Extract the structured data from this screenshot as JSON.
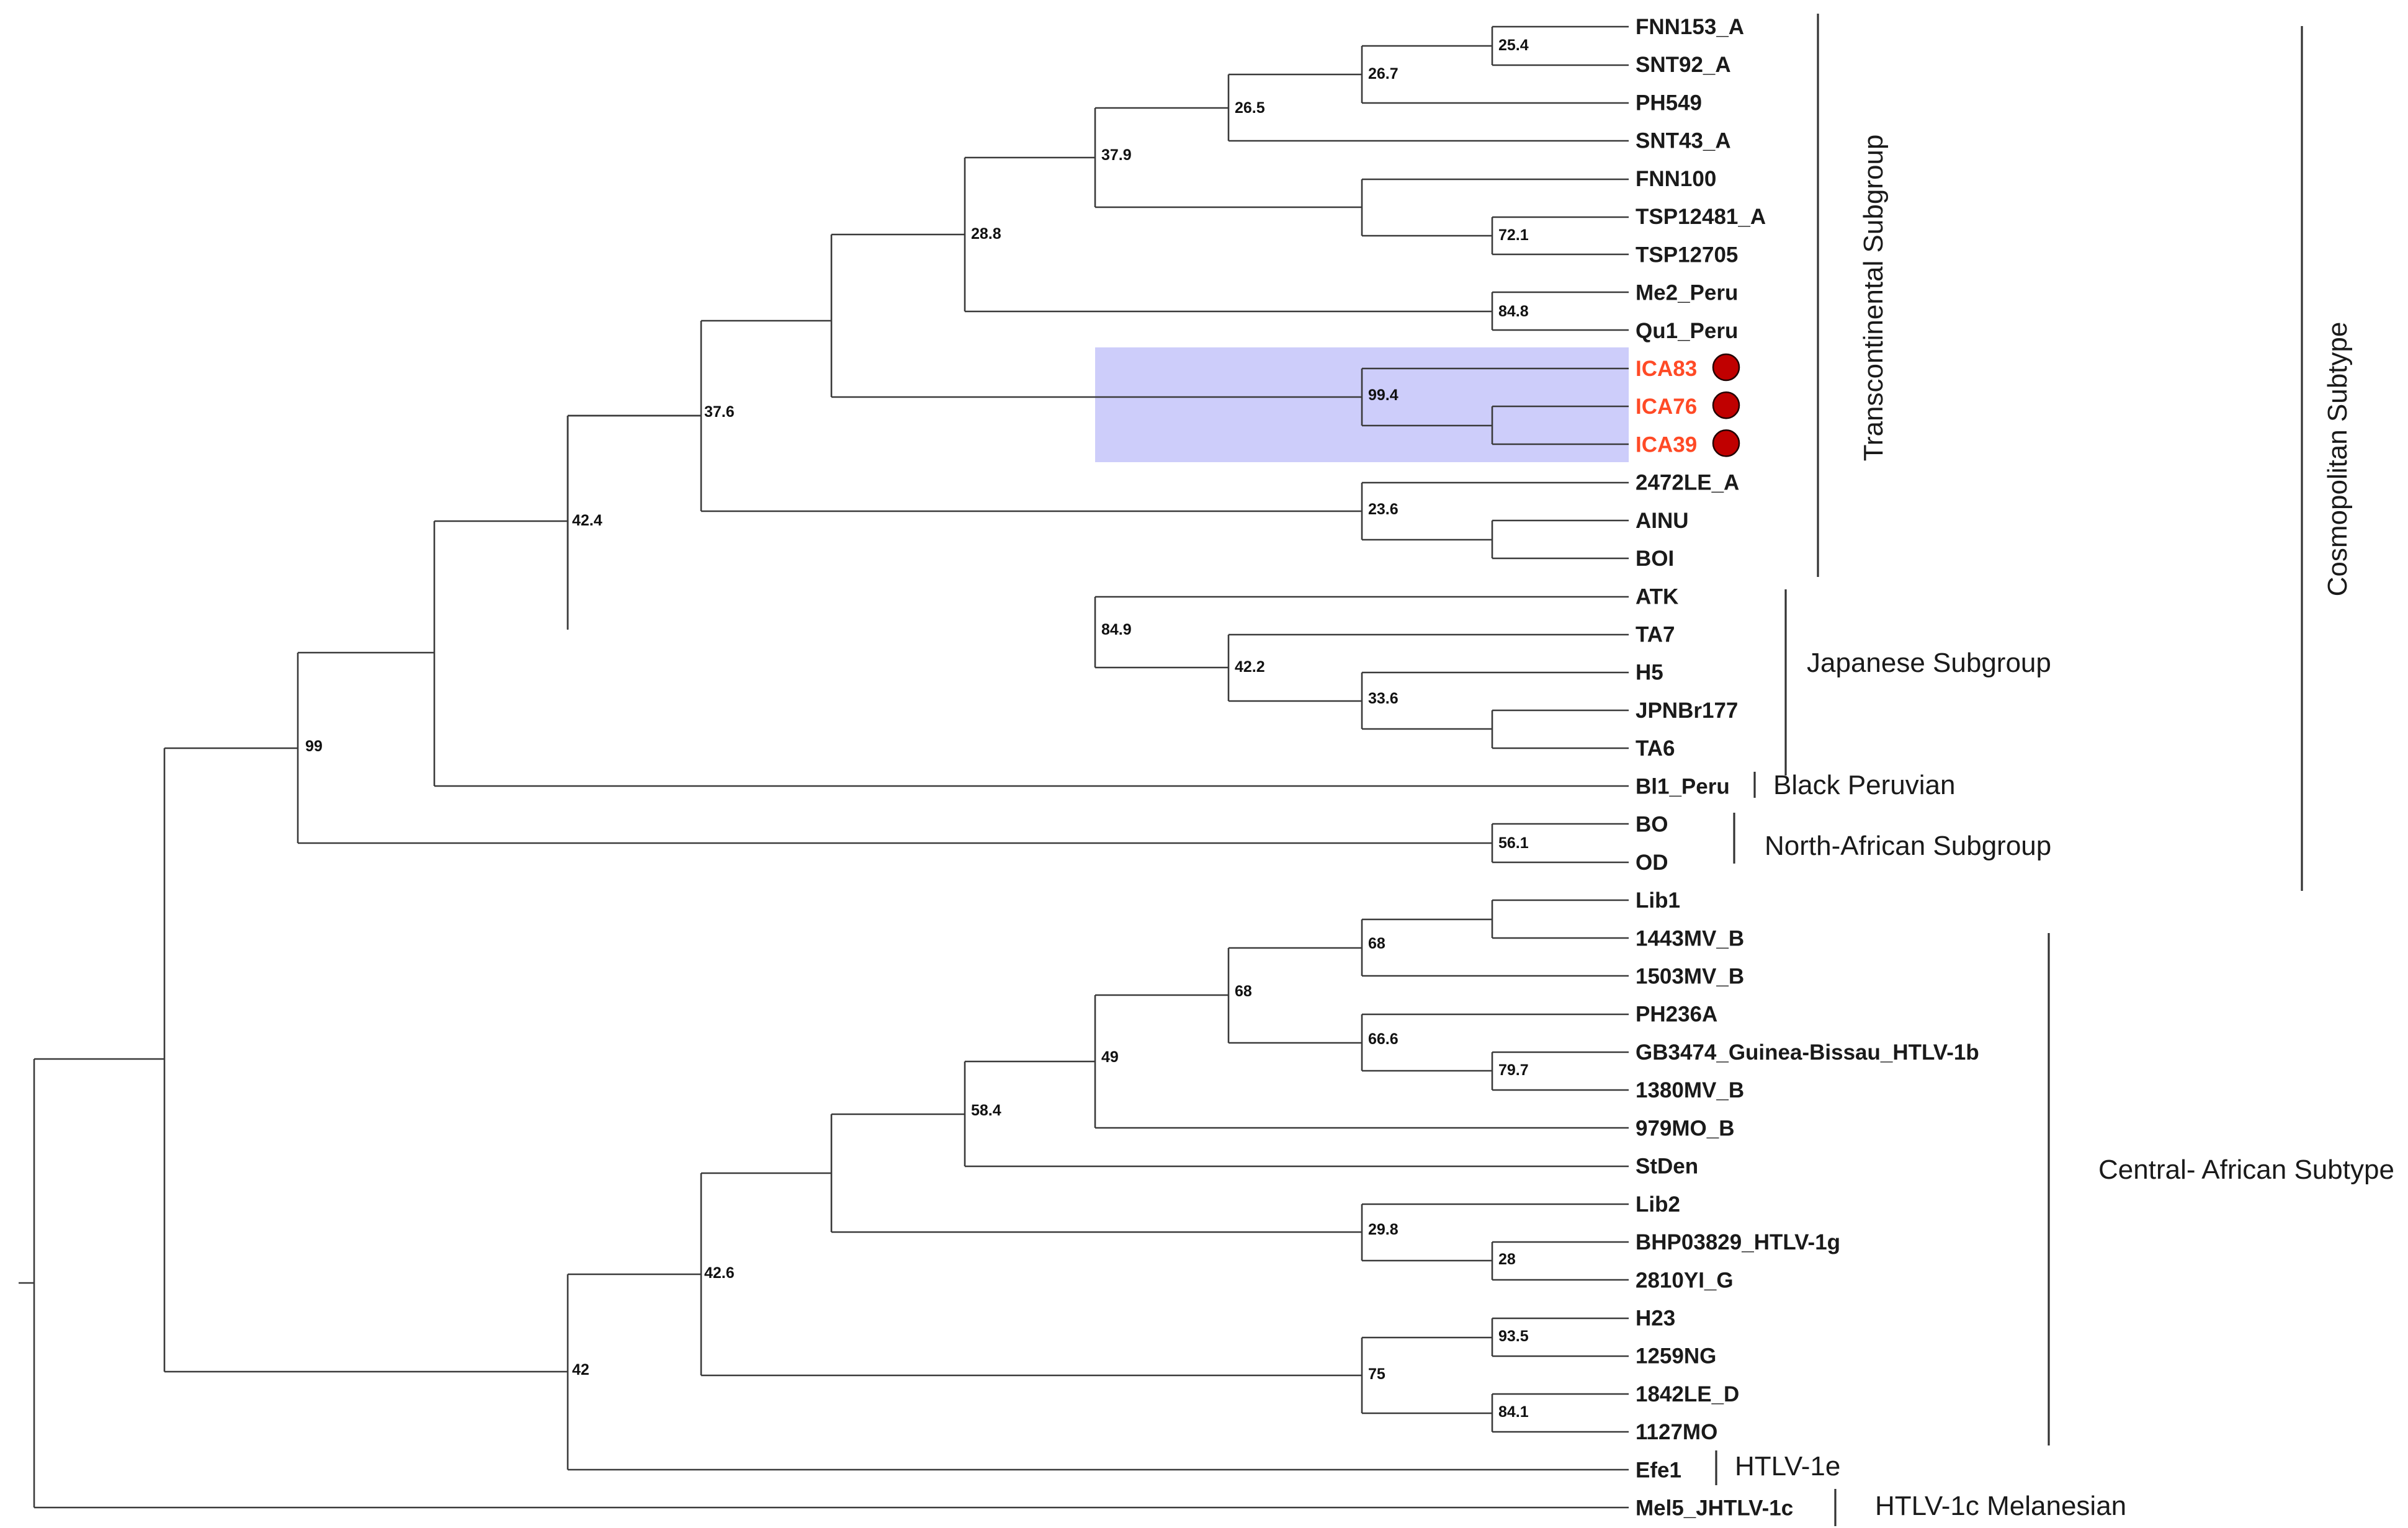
{
  "colors": {
    "branch": "#3a3a3a",
    "highlight_box": "#cdcdfa",
    "highlight_text": "#ff4a26",
    "marker_fill": "#c00000",
    "marker_stroke": "#220000"
  },
  "marker_icon": "red-circle",
  "taxa": [
    {
      "label": "FNN153_A"
    },
    {
      "label": "SNT92_A"
    },
    {
      "label": "PH549"
    },
    {
      "label": "SNT43_A"
    },
    {
      "label": "FNN100"
    },
    {
      "label": "TSP12481_A"
    },
    {
      "label": "TSP12705"
    },
    {
      "label": "Me2_Peru"
    },
    {
      "label": "Qu1_Peru"
    },
    {
      "label": "ICA83",
      "highlight": true
    },
    {
      "label": "ICA76",
      "highlight": true
    },
    {
      "label": "ICA39",
      "highlight": true
    },
    {
      "label": "2472LE_A"
    },
    {
      "label": "AINU"
    },
    {
      "label": "BOI"
    },
    {
      "label": "ATK"
    },
    {
      "label": "TA7"
    },
    {
      "label": "H5"
    },
    {
      "label": "JPNBr177"
    },
    {
      "label": "TA6"
    },
    {
      "label": "Bl1_Peru"
    },
    {
      "label": "BO"
    },
    {
      "label": "OD"
    },
    {
      "label": "Lib1"
    },
    {
      "label": "1443MV_B"
    },
    {
      "label": "1503MV_B"
    },
    {
      "label": "PH236A"
    },
    {
      "label": "GB3474_Guinea-Bissau_HTLV-1b"
    },
    {
      "label": "1380MV_B"
    },
    {
      "label": "979MO_B"
    },
    {
      "label": "StDen"
    },
    {
      "label": "Lib2"
    },
    {
      "label": "BHP03829_HTLV-1g"
    },
    {
      "label": "2810YI_G"
    },
    {
      "label": "H23"
    },
    {
      "label": "1259NG"
    },
    {
      "label": "1842LE_D"
    },
    {
      "label": "1127MO"
    },
    {
      "label": "Efe1"
    },
    {
      "label": "Mel5_JHTLV-1c"
    }
  ],
  "support_values": [
    "25.4",
    "26.7",
    "26.5",
    "37.9",
    "72.1",
    "84.8",
    "28.8",
    "99.4",
    "23.6",
    "37.6",
    "42.2",
    "84.9",
    "33.6",
    "42.4",
    "56.1",
    "99",
    "68",
    "68",
    "66.6",
    "79.7",
    "49",
    "58.4",
    "29.8",
    "28",
    "93.5",
    "84.1",
    "75",
    "42.6",
    "42"
  ],
  "group_labels": {
    "transcontinental": "Transcontinental Subgroup",
    "japanese": "Japanese Subgroup",
    "black_peruvian": "Black Peruvian",
    "north_african": "North-African Subgroup",
    "cosmopolitan": "Cosmopolitan Subtype",
    "central_african": "Central- African Subtype",
    "htlv1e": "HTLV-1e",
    "htlv1c": "HTLV-1c  Melanesian"
  }
}
